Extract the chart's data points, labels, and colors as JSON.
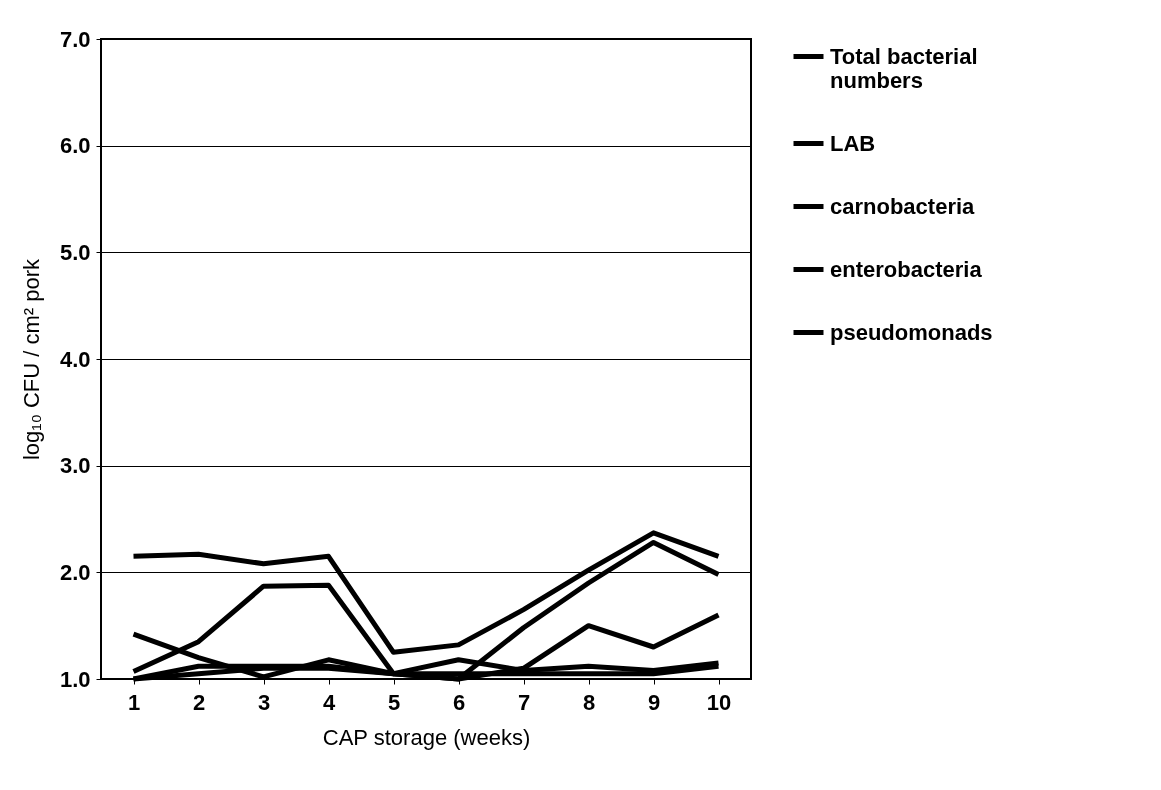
{
  "chart_data": {
    "type": "line",
    "xlabel": "CAP storage (weeks)",
    "ylabel": "log₁₀ CFU / cm² pork",
    "categories": [
      "1",
      "2",
      "3",
      "4",
      "5",
      "6",
      "7",
      "8",
      "9",
      "10"
    ],
    "series": [
      {
        "name": "Total bacterial numbers",
        "color": "#000000",
        "values": [
          2.15,
          2.17,
          2.08,
          2.15,
          1.25,
          1.32,
          1.65,
          2.02,
          2.37,
          2.15
        ]
      },
      {
        "name": "LAB",
        "color": "#000000",
        "values": [
          1.07,
          1.35,
          1.87,
          1.88,
          1.05,
          1.0,
          1.48,
          1.9,
          2.28,
          1.98
        ]
      },
      {
        "name": "carnobacteria",
        "color": "#000000",
        "values": [
          1.0,
          1.05,
          1.1,
          1.1,
          1.05,
          1.0,
          1.1,
          1.5,
          1.3,
          1.6
        ]
      },
      {
        "name": "enterobacteria",
        "color": "#000000",
        "values": [
          1.42,
          1.2,
          1.02,
          1.18,
          1.05,
          1.18,
          1.08,
          1.12,
          1.08,
          1.15
        ]
      },
      {
        "name": "pseudomonads",
        "color": "#000000",
        "values": [
          1.0,
          1.12,
          1.12,
          1.12,
          1.05,
          1.05,
          1.05,
          1.05,
          1.05,
          1.12
        ]
      }
    ],
    "ylim": [
      1,
      7
    ],
    "yticks": [
      {
        "value": 1,
        "label": "1.0"
      },
      {
        "value": 2,
        "label": "2.0"
      },
      {
        "value": 3,
        "label": "3.0"
      },
      {
        "value": 4,
        "label": "4.0"
      },
      {
        "value": 5,
        "label": "5.0"
      },
      {
        "value": 6,
        "label": "6.0"
      },
      {
        "value": 7,
        "label": "7.0"
      }
    ],
    "grid": "y",
    "legend": "right",
    "marker": "none",
    "line_style": "solid"
  }
}
